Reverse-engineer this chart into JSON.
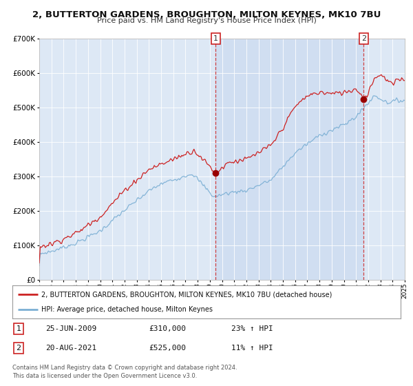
{
  "title": "2, BUTTERTON GARDENS, BROUGHTON, MILTON KEYNES, MK10 7BU",
  "subtitle": "Price paid vs. HM Land Registry's House Price Index (HPI)",
  "background_color": "#ffffff",
  "plot_bg_color": "#dde8f5",
  "plot_bg_shade": "#c8d8ef",
  "red_line_color": "#cc2222",
  "blue_line_color": "#7bafd4",
  "ylim": [
    0,
    700000
  ],
  "yticks": [
    0,
    100000,
    200000,
    300000,
    400000,
    500000,
    600000,
    700000
  ],
  "ytick_labels": [
    "£0",
    "£100K",
    "£200K",
    "£300K",
    "£400K",
    "£500K",
    "£600K",
    "£700K"
  ],
  "xmin": 1995,
  "xmax": 2025,
  "xticks": [
    1995,
    1996,
    1997,
    1998,
    1999,
    2000,
    2001,
    2002,
    2003,
    2004,
    2005,
    2006,
    2007,
    2008,
    2009,
    2010,
    2011,
    2012,
    2013,
    2014,
    2015,
    2016,
    2017,
    2018,
    2019,
    2020,
    2021,
    2022,
    2023,
    2024,
    2025
  ],
  "sale1_x": 2009.49,
  "sale1_y": 310000,
  "sale2_x": 2021.63,
  "sale2_y": 525000,
  "vline1_x": 2009.49,
  "vline2_x": 2021.63,
  "legend_line1": "2, BUTTERTON GARDENS, BROUGHTON, MILTON KEYNES, MK10 7BU (detached house)",
  "legend_line2": "HPI: Average price, detached house, Milton Keynes",
  "table_row1_num": "1",
  "table_row1_date": "25-JUN-2009",
  "table_row1_price": "£310,000",
  "table_row1_hpi": "23% ↑ HPI",
  "table_row2_num": "2",
  "table_row2_date": "20-AUG-2021",
  "table_row2_price": "£525,000",
  "table_row2_hpi": "11% ↑ HPI",
  "footer1": "Contains HM Land Registry data © Crown copyright and database right 2024.",
  "footer2": "This data is licensed under the Open Government Licence v3.0."
}
